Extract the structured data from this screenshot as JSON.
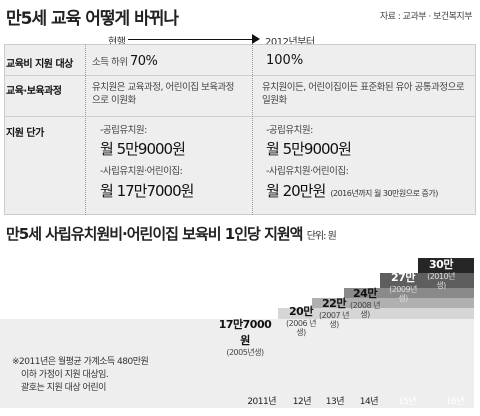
{
  "headline": "만5세 교육 어떻게 바뀌나",
  "source": "자료 : 교과부 · 보건복지부",
  "comparison": {
    "current_label": "현행",
    "future_label": "2012년부터",
    "rows": [
      {
        "label": "교육비 지원 대상",
        "current": "소득 하위",
        "current_pct": "70%",
        "future": "100%"
      },
      {
        "label": "교육·보육과정",
        "current": "유치원은 교육과정, 어린이집 보육과정으로 이원화",
        "future": "유치원이든, 어린이집이든 표준화된 유아 공통과정으로 일원화"
      },
      {
        "label": "지원 단가",
        "current_public_label": "-공립유치원:",
        "current_public_amt": "월 5만9000원",
        "current_private_label": "-사립유치원·어린이집:",
        "current_private_amt": "월 17만7000원",
        "future_public_label": "-공립유치원:",
        "future_public_amt": "월 5만9000원",
        "future_private_label": "-사립유치원·어린이집:",
        "future_private_amt": "월 20만원",
        "future_private_note": "(2016년까지 월 30만원으로 증가)"
      }
    ]
  },
  "chart_title": "만5세 사립유치원비·어린이집 보육비 1인당 지원액",
  "chart_unit": "단위: 원",
  "chart_data": {
    "type": "bar",
    "title": "만5세 사립유치원비·어린이집 보육비 1인당 지원액",
    "unit": "단위: 원",
    "categories": [
      "2011년",
      "12년",
      "13년",
      "14년",
      "15년",
      "16년"
    ],
    "values": [
      177000,
      200000,
      220000,
      240000,
      270000,
      300000
    ],
    "value_labels": [
      "17만7000원",
      "20만",
      "22만",
      "24만",
      "27만",
      "30만"
    ],
    "cohort_labels": [
      "(2005년생)",
      "(2006 년생)",
      "(2007 년생)",
      "(2008 년생)",
      "(2009년생)",
      "(2010년생)"
    ],
    "colors": [
      "#eeeeee",
      "#d6d6d6",
      "#b0b0b0",
      "#8a8a8a",
      "#5e5e5e",
      "#262626"
    ]
  },
  "footnote": [
    "※2011년은 월평균 가계소득 480만원",
    "이하 가정이 지원 대상임.",
    "괄호는 지원 대상 어린이"
  ]
}
